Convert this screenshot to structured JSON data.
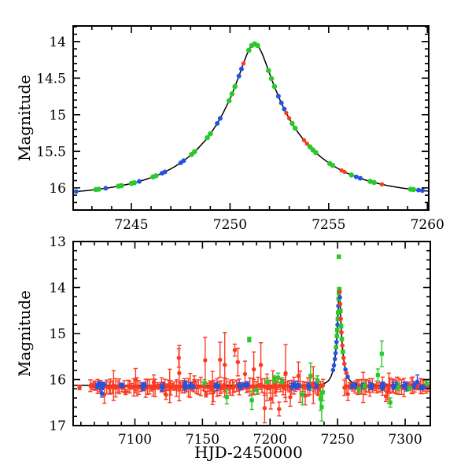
{
  "colors": {
    "red": "#fb3a22",
    "green": "#2bc82b",
    "blue": "#2553e0",
    "curve": "#000000",
    "frame": "#000000"
  },
  "chart_data": [
    {
      "type": "scatter",
      "panel": "top",
      "title": "",
      "xlabel": "",
      "ylabel": "Magnitude",
      "xlim": [
        7242.05,
        7260.07
      ],
      "ylim": [
        13.787,
        16.303
      ],
      "xticks": [
        7245,
        7250,
        7255,
        7260
      ],
      "xtick_labels": [
        "7245",
        "7250",
        "7255",
        "7260"
      ],
      "yticks": [
        14,
        14.5,
        15,
        15.5,
        16
      ],
      "ytick_labels": [
        "14",
        "14.5",
        "15",
        "15.5",
        "16"
      ],
      "xminor": 1,
      "yminor": 0.1,
      "grid": false,
      "model": {
        "name": "paczynski",
        "t0": 7251.25,
        "tE": 4.8,
        "u0": 0.1466,
        "baseline_mag": 16.125,
        "peak_mag": 14.03
      },
      "points": [
        [
          7242.2,
          "b"
        ],
        [
          7243.2,
          "g"
        ],
        [
          7243.35,
          "g"
        ],
        [
          7243.7,
          "b"
        ],
        [
          7244.35,
          "g"
        ],
        [
          7244.5,
          "g"
        ],
        [
          7245.0,
          "g"
        ],
        [
          7245.15,
          "g"
        ],
        [
          7245.4,
          "b"
        ],
        [
          7246.1,
          "g"
        ],
        [
          7246.25,
          "g"
        ],
        [
          7246.55,
          "b"
        ],
        [
          7246.7,
          "b"
        ],
        [
          7247.5,
          "b"
        ],
        [
          7247.65,
          "b"
        ],
        [
          7248.05,
          "g"
        ],
        [
          7248.2,
          "g"
        ],
        [
          7248.85,
          "g"
        ],
        [
          7249.0,
          "g"
        ],
        [
          7249.35,
          "b"
        ],
        [
          7249.5,
          "b"
        ],
        [
          7249.95,
          "g"
        ],
        [
          7250.1,
          "g"
        ],
        [
          7250.25,
          "g"
        ],
        [
          7250.45,
          "b"
        ],
        [
          7250.58,
          "b"
        ],
        [
          7250.68,
          "r"
        ],
        [
          7250.95,
          "g"
        ],
        [
          7251.1,
          "g"
        ],
        [
          7251.25,
          "g"
        ],
        [
          7251.4,
          "g"
        ],
        [
          7251.95,
          "g"
        ],
        [
          7252.1,
          "g"
        ],
        [
          7252.25,
          "g"
        ],
        [
          7252.45,
          "b"
        ],
        [
          7252.6,
          "b"
        ],
        [
          7252.75,
          "b"
        ],
        [
          7252.85,
          "r"
        ],
        [
          7253.0,
          "r"
        ],
        [
          7253.15,
          "g"
        ],
        [
          7253.3,
          "g"
        ],
        [
          7253.75,
          "r"
        ],
        [
          7253.9,
          "r"
        ],
        [
          7254.05,
          "g"
        ],
        [
          7254.2,
          "g"
        ],
        [
          7254.35,
          "g"
        ],
        [
          7255.05,
          "g"
        ],
        [
          7255.2,
          "g"
        ],
        [
          7255.65,
          "r"
        ],
        [
          7255.8,
          "r"
        ],
        [
          7256.15,
          "g"
        ],
        [
          7256.4,
          "b"
        ],
        [
          7256.6,
          "b"
        ],
        [
          7257.1,
          "g"
        ],
        [
          7257.3,
          "g"
        ],
        [
          7257.7,
          "r"
        ],
        [
          7259.15,
          "g"
        ],
        [
          7259.3,
          "g"
        ],
        [
          7259.55,
          "b"
        ],
        [
          7259.75,
          "b"
        ],
        [
          7260.5,
          "b"
        ]
      ]
    },
    {
      "type": "scatter",
      "panel": "bottom",
      "title": "",
      "xlabel": "HJD-2450000",
      "ylabel": "Magnitude",
      "xlim": [
        7054.3,
        7318.6
      ],
      "ylim": [
        13.0,
        17.0
      ],
      "xticks": [
        7100,
        7150,
        7200,
        7250,
        7300
      ],
      "xtick_labels": [
        "7100",
        "7150",
        "7200",
        "7250",
        "7300"
      ],
      "yticks": [
        13,
        14,
        15,
        16,
        17
      ],
      "ytick_labels": [
        "13",
        "14",
        "15",
        "16",
        "17"
      ],
      "xminor": 10,
      "yminor": 0.2,
      "grid": false,
      "baseline_mag": 16.15,
      "model": {
        "name": "paczynski",
        "t0": 7251.25,
        "tE": 4.8,
        "u0": 0.1466,
        "baseline_mag": 16.125,
        "peak_mag": 14.03
      },
      "spike_points": [
        [
          7246.6,
          "b"
        ],
        [
          7247.3,
          "b"
        ],
        [
          7248.0,
          "b"
        ],
        [
          7248.5,
          "b"
        ],
        [
          7248.9,
          "g"
        ],
        [
          7249.2,
          "b"
        ],
        [
          7249.5,
          "g"
        ],
        [
          7249.75,
          "g"
        ],
        [
          7249.95,
          "b"
        ],
        [
          7250.15,
          "g"
        ],
        [
          7250.35,
          "g"
        ],
        [
          7250.55,
          "b"
        ],
        [
          7250.75,
          "g"
        ],
        [
          7250.9,
          "g",
          13.33
        ],
        [
          7250.95,
          "g"
        ],
        [
          7251.15,
          "g"
        ],
        [
          7251.3,
          "g"
        ],
        [
          7251.5,
          "r"
        ],
        [
          7251.7,
          "b"
        ],
        [
          7251.9,
          "r"
        ],
        [
          7252.1,
          "g"
        ],
        [
          7252.35,
          "r"
        ],
        [
          7252.6,
          "g"
        ],
        [
          7252.85,
          "r"
        ],
        [
          7253.15,
          "g"
        ],
        [
          7253.5,
          "r"
        ],
        [
          7253.9,
          "g"
        ],
        [
          7254.4,
          "r"
        ],
        [
          7255.0,
          "r"
        ],
        [
          7255.8,
          "b"
        ],
        [
          7256.5,
          "r"
        ],
        [
          7257.5,
          "b"
        ]
      ],
      "red_outliers": [
        [
          7059,
          16.17,
          0.05
        ],
        [
          7100.5,
          16.0,
          0.24
        ],
        [
          7114,
          16.06,
          0.16
        ],
        [
          7123,
          16.33,
          0.1
        ],
        [
          7132.5,
          15.53,
          0.2
        ],
        [
          7132.8,
          15.86,
          0.6
        ],
        [
          7144,
          16.05,
          0.13
        ],
        [
          7152,
          15.58,
          0.5
        ],
        [
          7158,
          16.28,
          0.2
        ],
        [
          7163,
          15.57,
          0.38
        ],
        [
          7166.5,
          15.68,
          0.7
        ],
        [
          7173.9,
          15.36,
          0.13
        ],
        [
          7176.2,
          15.62,
          0.3
        ],
        [
          7181.5,
          15.88,
          0.28
        ],
        [
          7188,
          15.78,
          0.38
        ],
        [
          7193.2,
          15.68,
          0.48
        ],
        [
          7196,
          16.62,
          0.32
        ],
        [
          7200.5,
          16.42,
          0.22
        ],
        [
          7206.7,
          16.64,
          0.15
        ],
        [
          7211.5,
          15.86,
          0.62
        ],
        [
          7215,
          16.38,
          0.2
        ],
        [
          7221,
          15.92,
          0.3
        ],
        [
          7226,
          16.35,
          0.2
        ],
        [
          7232,
          16.12,
          0.4
        ]
      ],
      "green_points": [
        [
          7151.5,
          16.08,
          0.08
        ],
        [
          7168,
          16.38,
          0.15
        ],
        [
          7184.6,
          15.13,
          0.05
        ],
        [
          7186.5,
          16.45,
          0.2
        ],
        [
          7190,
          16.22,
          0.1
        ],
        [
          7198,
          16.05,
          0.08
        ],
        [
          7203,
          16.0,
          0.08
        ],
        [
          7206,
          15.96,
          0.1
        ],
        [
          7209,
          16.06,
          0.1
        ],
        [
          7224,
          16.33,
          0.22
        ],
        [
          7230,
          15.92,
          0.28
        ],
        [
          7235,
          16.02,
          0.1
        ],
        [
          7237.3,
          16.42,
          0.25
        ],
        [
          7238.2,
          16.6,
          0.3
        ],
        [
          7239,
          16.28,
          0.18
        ],
        [
          7266,
          16.2,
          0.1
        ],
        [
          7270,
          16.14,
          0.08
        ],
        [
          7279.8,
          15.9,
          0.13
        ],
        [
          7282.7,
          15.44,
          0.28
        ],
        [
          7289,
          16.5,
          0.1
        ],
        [
          7295,
          16.16,
          0.08
        ],
        [
          7303,
          16.18,
          0.06
        ],
        [
          7316,
          16.1,
          0.08
        ]
      ],
      "blue_points": [
        [
          7075.5,
          16.3,
          0.08
        ],
        [
          7309,
          16.05,
          0.15
        ]
      ],
      "scatter_gen": {
        "seed": 7,
        "red_runs": [
          [
            7067,
            7240
          ],
          [
            7255,
            7318
          ]
        ],
        "red_step_min": 0.7,
        "red_step_max": 2.0,
        "red_mag_center": 16.15,
        "red_mag_sd": 0.055,
        "red_err_min": 0.05,
        "red_err_max": 0.2,
        "blue_clusters": [
          7073,
          7076,
          7090,
          7106,
          7121,
          7138,
          7142,
          7161,
          7178,
          7182,
          7217,
          7220,
          7229,
          7234,
          7262,
          7268,
          7275,
          7284,
          7292,
          7300,
          7307,
          7313
        ],
        "blue_mag_center": 16.14,
        "blue_mag_sd": 0.045,
        "blue_err_min": 0.04,
        "blue_err_max": 0.09
      }
    }
  ]
}
